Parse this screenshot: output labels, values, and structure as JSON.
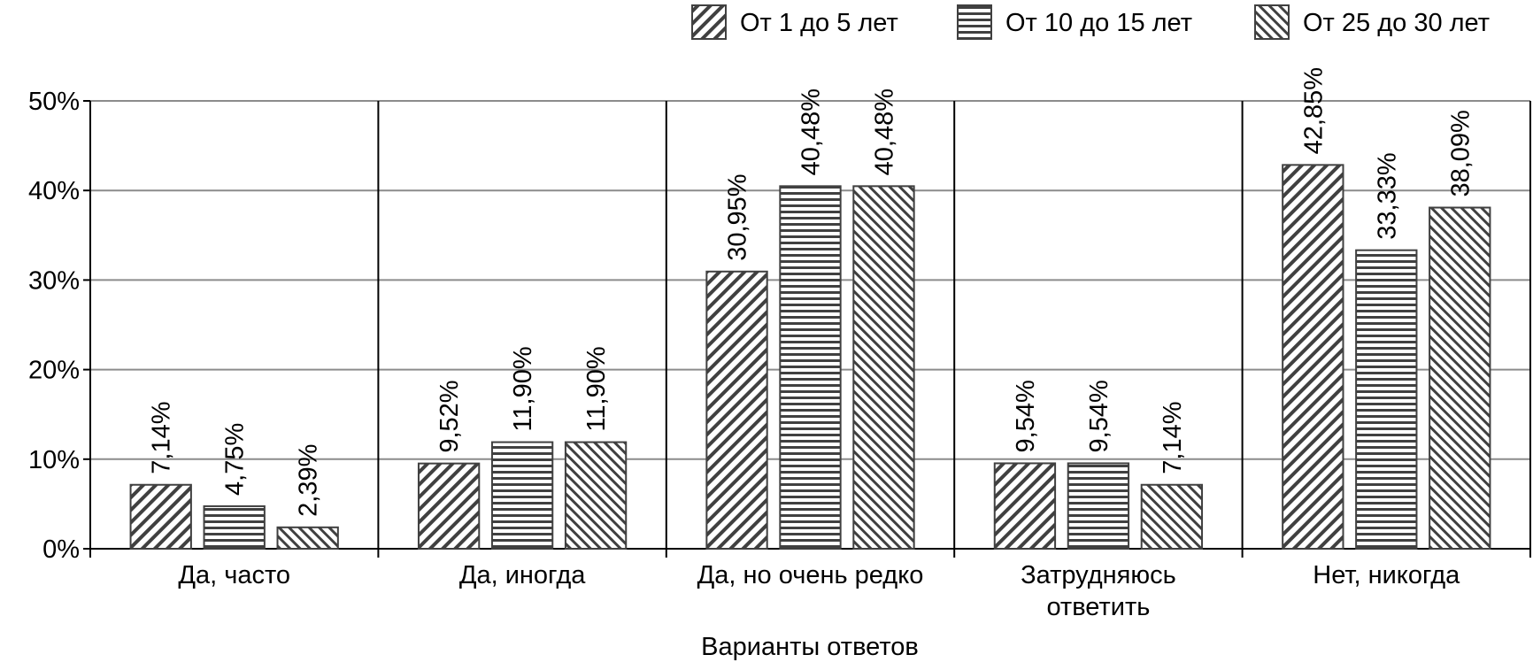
{
  "chart_data": {
    "type": "bar",
    "x_label": "Варианты ответов",
    "categories": [
      "Да, часто",
      "Да, иногда",
      "Да, но очень редко",
      "Затрудняюсь ответить",
      "Нет, никогда"
    ],
    "series": [
      {
        "name": "От 1 до 5 лет",
        "color": "#404040",
        "pattern": "diagonal-up",
        "values": [
          7.14,
          9.52,
          30.95,
          9.54,
          42.85
        ],
        "value_labels": [
          "7,14%",
          "9,52%",
          "30,95%",
          "9,54%",
          "42,85%"
        ]
      },
      {
        "name": "От 10 до 15 лет",
        "color": "#404040",
        "pattern": "horizontal",
        "values": [
          4.75,
          11.9,
          40.48,
          9.54,
          33.33
        ],
        "value_labels": [
          "4,75%",
          "11,90%",
          "40,48%",
          "9,54%",
          "33,33%"
        ]
      },
      {
        "name": "От 25 до 30 лет",
        "color": "#404040",
        "pattern": "diagonal-down",
        "values": [
          2.39,
          11.9,
          40.48,
          7.14,
          38.09
        ],
        "value_labels": [
          "2,39%",
          "11,90%",
          "40,48%",
          "7,14%",
          "38,09%"
        ]
      }
    ],
    "ylim": [
      0,
      50
    ],
    "yticks": [
      {
        "value": 0,
        "label": "0%"
      },
      {
        "value": 10,
        "label": "10%"
      },
      {
        "value": 20,
        "label": "20%"
      },
      {
        "value": 30,
        "label": "30%"
      },
      {
        "value": 40,
        "label": "40%"
      },
      {
        "value": 50,
        "label": "50%"
      }
    ],
    "grid": true,
    "legend": "top-right"
  }
}
